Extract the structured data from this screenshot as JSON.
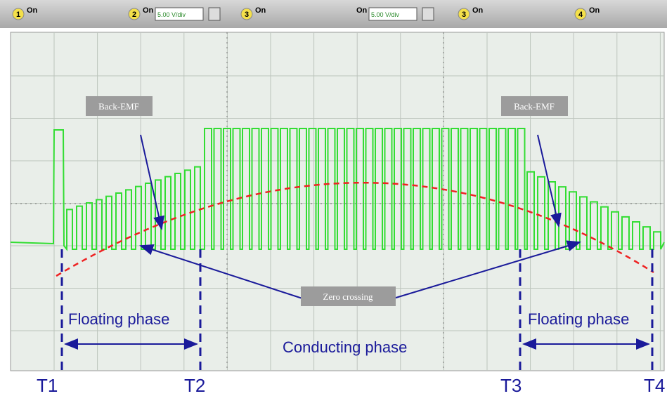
{
  "toolbar": {
    "channels": [
      {
        "number": "1",
        "state": "On"
      },
      {
        "number": "2",
        "state": "On",
        "scale": "5.00 V/div"
      },
      {
        "number": "3",
        "state": "On"
      },
      {
        "state": "On",
        "scale": "5.00 V/div"
      },
      {
        "number": "3",
        "state": "On"
      },
      {
        "number": "4",
        "state": "On"
      }
    ]
  },
  "annotations": {
    "back_emf": [
      "Back-EMF",
      "Back-EMF"
    ],
    "zero_crossing": "Zero crossing",
    "floating_phase": [
      "Floating phase",
      "Floating phase"
    ],
    "conducting_phase": "Conducting phase"
  },
  "time_markers": [
    "T1",
    "T2",
    "T3",
    "T4"
  ]
}
